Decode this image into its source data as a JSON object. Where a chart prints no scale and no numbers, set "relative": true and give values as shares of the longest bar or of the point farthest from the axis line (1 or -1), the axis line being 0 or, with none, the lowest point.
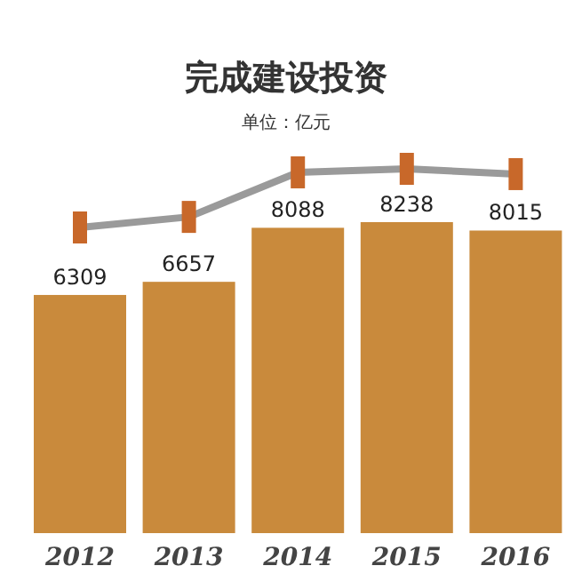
{
  "chart_data": [
    {
      "type": "bar",
      "title": "完成建设投资",
      "subtitle": "单位：亿元",
      "categories": [
        "2012",
        "2013",
        "2014",
        "2015",
        "2016"
      ],
      "data_labels": true,
      "series": [
        {
          "color": "#c98a3c",
          "values": [
            6309,
            6657,
            8088,
            8238,
            8015
          ]
        }
      ]
    },
    {
      "type": "line",
      "relative": true,
      "marker": "square",
      "categories": [
        null,
        null,
        null,
        null,
        null
      ],
      "series": [
        {
          "color": "#9a9a9a",
          "colors": [
            "#c8682a",
            "#c8682a",
            "#c8682a",
            "#c8682a",
            "#c8682a"
          ],
          "values": [
            0,
            0.18,
            0.94,
            1,
            0.91
          ]
        }
      ]
    }
  ]
}
